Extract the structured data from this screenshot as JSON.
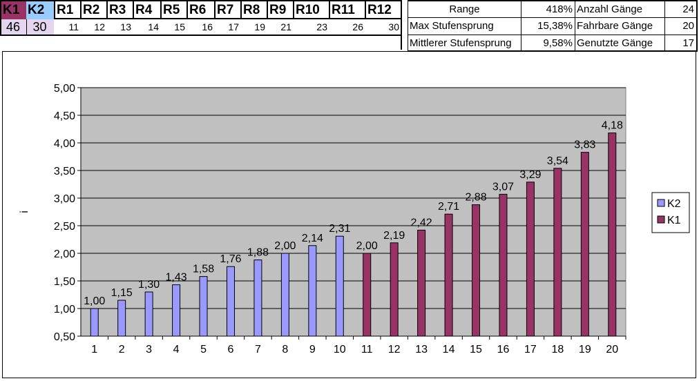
{
  "sheet": {
    "k1": {
      "label": "K1",
      "value": "46",
      "color": "#993366"
    },
    "k2": {
      "label": "K2",
      "value": "30",
      "color": "#99CCFF"
    },
    "sprockets": [
      {
        "label": "R1",
        "teeth": "11"
      },
      {
        "label": "R2",
        "teeth": "12"
      },
      {
        "label": "R3",
        "teeth": "13"
      },
      {
        "label": "R4",
        "teeth": "14"
      },
      {
        "label": "R5",
        "teeth": "15"
      },
      {
        "label": "R6",
        "teeth": "16"
      },
      {
        "label": "R7",
        "teeth": "17"
      },
      {
        "label": "R8",
        "teeth": "19"
      },
      {
        "label": "R9",
        "teeth": "21"
      },
      {
        "label": "R10",
        "teeth": "23"
      },
      {
        "label": "R11",
        "teeth": "26"
      },
      {
        "label": "R12",
        "teeth": "30"
      }
    ]
  },
  "stats": {
    "range_label": "Range",
    "range_value": "418%",
    "max_jump_label": "Max Stufensprung",
    "max_jump_value": "15,38%",
    "mean_jump_label": "Mittlerer Stufensprung",
    "mean_jump_value": "9,58%",
    "gears_total_label": "Anzahl Gänge",
    "gears_total_value": "24",
    "gears_ridable_label": "Fahrbare Gänge",
    "gears_ridable_value": "20",
    "gears_used_label": "Genutzte Gänge",
    "gears_used_value": "17"
  },
  "chart_data": {
    "type": "bar",
    "title": "",
    "xlabel": "",
    "ylabel": "i",
    "categories": [
      "1",
      "2",
      "3",
      "4",
      "5",
      "6",
      "7",
      "8",
      "9",
      "10",
      "11",
      "12",
      "13",
      "14",
      "15",
      "16",
      "17",
      "18",
      "19",
      "20"
    ],
    "series": [
      {
        "name": "K2",
        "color": "#9999FF",
        "values": [
          1.0,
          1.15,
          1.3,
          1.43,
          1.58,
          1.76,
          1.88,
          2.0,
          2.14,
          2.31,
          null,
          null,
          null,
          null,
          null,
          null,
          null,
          null,
          null,
          null
        ]
      },
      {
        "name": "K1",
        "color": "#993366",
        "values": [
          null,
          null,
          null,
          null,
          null,
          null,
          null,
          null,
          null,
          null,
          2.0,
          2.19,
          2.42,
          2.71,
          2.88,
          3.07,
          3.29,
          3.54,
          3.83,
          4.18
        ]
      }
    ],
    "data_labels": [
      "1,00",
      "1,15",
      "1,30",
      "1,43",
      "1,58",
      "1,76",
      "1,88",
      "2,00",
      "2,14",
      "2,31",
      "2,00",
      "2,19",
      "2,42",
      "2,71",
      "2,88",
      "3,07",
      "3,29",
      "3,54",
      "3,83",
      "4,18"
    ],
    "ylim": [
      0.5,
      5.0
    ],
    "yticks": [
      0.5,
      1.0,
      1.5,
      2.0,
      2.5,
      3.0,
      3.5,
      4.0,
      4.5,
      5.0
    ],
    "ytick_labels": [
      "0,50",
      "1,00",
      "1,50",
      "2,00",
      "2,50",
      "3,00",
      "3,50",
      "4,00",
      "4,50",
      "5,00"
    ],
    "plot_background": "#C0C0C0",
    "grid": true,
    "legend_position": "right",
    "legend": [
      "K2",
      "K1"
    ]
  }
}
